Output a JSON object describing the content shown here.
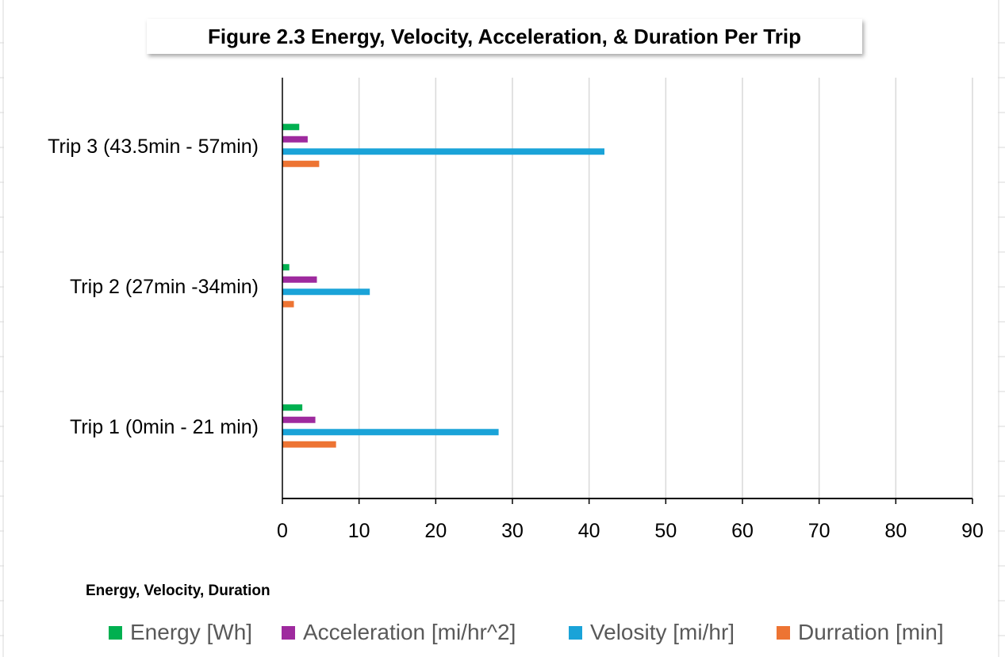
{
  "chart_data": {
    "type": "bar",
    "orientation": "horizontal",
    "title": "Figure 2.3 Energy, Velocity, Acceleration, & Duration Per Trip",
    "xlabel": "Energy, Velocity, Duration",
    "ylabel": "",
    "xlim": [
      0,
      90
    ],
    "x_ticks": [
      0,
      10,
      20,
      30,
      40,
      50,
      60,
      70,
      80,
      90
    ],
    "categories": [
      "Trip 1 (0min - 21 min)",
      "Trip 2 (27min -34min)",
      "Trip 3 (43.5min - 57min)"
    ],
    "series": [
      {
        "name": "Energy [Wh]",
        "color": "#00B050",
        "values": [
          2.6,
          0.9,
          2.2
        ]
      },
      {
        "name": "Acceleration [mi/hr^2]",
        "color": "#9E2A9E",
        "values": [
          4.3,
          4.5,
          3.3
        ]
      },
      {
        "name": "Velosity [mi/hr]",
        "color": "#1AA3D8",
        "values": [
          28.2,
          11.4,
          42
        ]
      },
      {
        "name": "Durration [min]",
        "color": "#ED7433",
        "values": [
          7,
          1.5,
          4.8
        ]
      }
    ],
    "grid": true,
    "legend_position": "bottom"
  }
}
